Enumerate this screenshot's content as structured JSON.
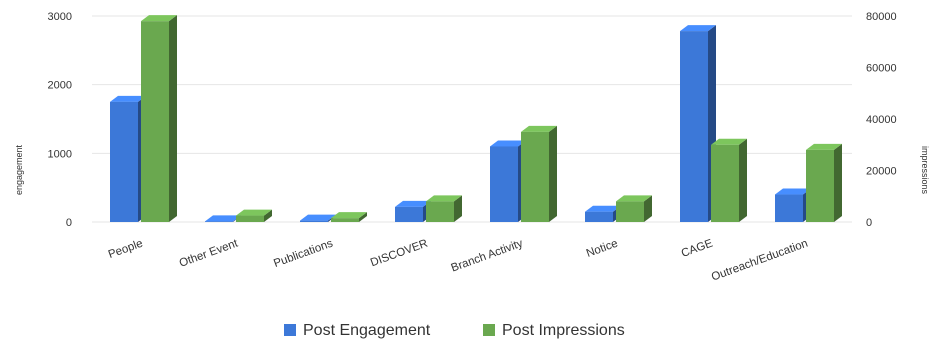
{
  "chart_data": {
    "type": "bar",
    "title": "",
    "categories": [
      "People",
      "Other Event",
      "Publications",
      "DISCOVER",
      "Branch Activity",
      "Notice",
      "CAGE",
      "Outreach/Education"
    ],
    "series": [
      {
        "name": "Post Engagement",
        "axis": "left",
        "color": "#3c78d8",
        "values": [
          1750,
          10,
          20,
          220,
          1100,
          150,
          2780,
          400
        ]
      },
      {
        "name": "Post Impressions",
        "axis": "right",
        "color": "#6aa84f",
        "values": [
          78000,
          2500,
          1500,
          8000,
          35000,
          8000,
          30000,
          28000
        ]
      }
    ],
    "ylabel": "engagement",
    "ylabel_right": "impressions",
    "ylim": [
      0,
      3000
    ],
    "ylim_right": [
      0,
      80000
    ],
    "yticks": [
      "0",
      "1000",
      "2000",
      "3000"
    ],
    "yticks_right": [
      "0",
      "20000",
      "40000",
      "60000",
      "80000"
    ],
    "grid": true,
    "bars_3d": true,
    "legend_position": "bottom"
  }
}
